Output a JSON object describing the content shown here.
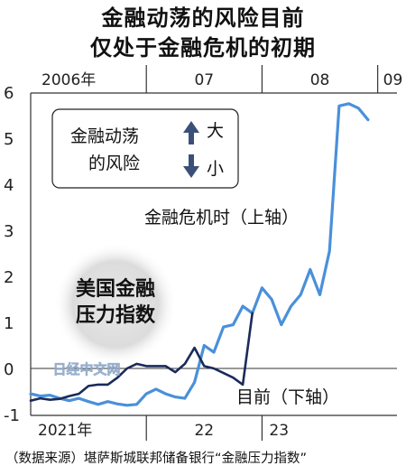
{
  "title_line1": "金融动荡的风险目前",
  "title_line2": "仅处于金融危机的初期",
  "source": "（数据来源）堪萨斯城联邦储备银行“金融压力指数”",
  "watermark": "日经中文网",
  "legend": {
    "line1": "金融动荡",
    "line2": "的风险",
    "up": "大",
    "down": "小",
    "up_icon": "arrow-up-icon",
    "down_icon": "arrow-down-icon"
  },
  "badge": {
    "line1": "美国金融",
    "line2": "压力指数"
  },
  "chart_data": {
    "type": "line",
    "title": "金融动荡的风险目前仅处于金融危机的初期",
    "ylim": [
      -1,
      6
    ],
    "yticks": [
      -1,
      0,
      1,
      2,
      3,
      4,
      5,
      6
    ],
    "top_axis": {
      "labels": [
        "2006年",
        "07",
        "08",
        "09"
      ],
      "dividers": [
        "2007-01",
        "2008-01",
        "2009-01"
      ],
      "range": [
        "2006-01",
        "2009-03"
      ]
    },
    "bottom_axis": {
      "labels": [
        "2021年",
        "22",
        "23"
      ],
      "dividers": [
        "2022-01",
        "2023-01"
      ],
      "range": [
        "2021-01",
        "2024-03"
      ]
    },
    "series": [
      {
        "name": "金融危机时（上轴）",
        "axis": "top",
        "color": "#4a90d9",
        "points": [
          [
            "2006-01",
            -0.55
          ],
          [
            "2006-02",
            -0.6
          ],
          [
            "2006-03",
            -0.58
          ],
          [
            "2006-04",
            -0.65
          ],
          [
            "2006-05",
            -0.7
          ],
          [
            "2006-06",
            -0.65
          ],
          [
            "2006-07",
            -0.72
          ],
          [
            "2006-08",
            -0.78
          ],
          [
            "2006-09",
            -0.72
          ],
          [
            "2006-10",
            -0.77
          ],
          [
            "2006-11",
            -0.8
          ],
          [
            "2006-12",
            -0.78
          ],
          [
            "2007-01",
            -0.55
          ],
          [
            "2007-02",
            -0.45
          ],
          [
            "2007-03",
            -0.55
          ],
          [
            "2007-04",
            -0.62
          ],
          [
            "2007-05",
            -0.65
          ],
          [
            "2007-06",
            -0.3
          ],
          [
            "2007-07",
            0.5
          ],
          [
            "2007-08",
            0.35
          ],
          [
            "2007-09",
            0.9
          ],
          [
            "2007-10",
            0.95
          ],
          [
            "2007-11",
            1.35
          ],
          [
            "2007-12",
            1.2
          ],
          [
            "2008-01",
            1.75
          ],
          [
            "2008-02",
            1.5
          ],
          [
            "2008-03",
            0.95
          ],
          [
            "2008-04",
            1.35
          ],
          [
            "2008-05",
            1.6
          ],
          [
            "2008-06",
            2.15
          ],
          [
            "2008-07",
            1.6
          ],
          [
            "2008-08",
            2.55
          ],
          [
            "2008-09",
            5.7
          ],
          [
            "2008-10",
            5.75
          ],
          [
            "2008-11",
            5.65
          ],
          [
            "2008-12",
            5.4
          ]
        ]
      },
      {
        "name": "目前（下轴）",
        "axis": "bottom",
        "color": "#1a2a5a",
        "points": [
          [
            "2021-01",
            -0.7
          ],
          [
            "2021-02",
            -0.65
          ],
          [
            "2021-03",
            -0.68
          ],
          [
            "2021-04",
            -0.66
          ],
          [
            "2021-05",
            -0.6
          ],
          [
            "2021-06",
            -0.55
          ],
          [
            "2021-07",
            -0.38
          ],
          [
            "2021-08",
            -0.35
          ],
          [
            "2021-09",
            -0.35
          ],
          [
            "2021-10",
            -0.2
          ],
          [
            "2021-11",
            0.0
          ],
          [
            "2021-12",
            0.1
          ],
          [
            "2022-01",
            0.05
          ],
          [
            "2022-02",
            0.05
          ],
          [
            "2022-03",
            0.05
          ],
          [
            "2022-04",
            -0.08
          ],
          [
            "2022-05",
            0.1
          ],
          [
            "2022-06",
            0.45
          ],
          [
            "2022-07",
            0.05
          ],
          [
            "2022-08",
            0.0
          ],
          [
            "2022-09",
            -0.1
          ],
          [
            "2022-10",
            -0.2
          ],
          [
            "2022-11",
            -0.35
          ],
          [
            "2022-12",
            1.2
          ]
        ]
      }
    ]
  }
}
